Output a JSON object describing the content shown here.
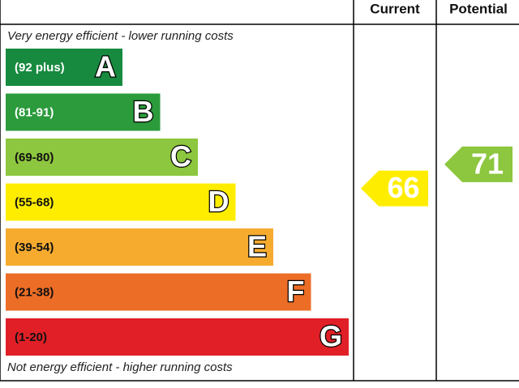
{
  "header": {
    "current": "Current",
    "potential": "Potential"
  },
  "top_note": "Very energy efficient - lower running costs",
  "bottom_note": "Not energy efficient - higher running costs",
  "bands": [
    {
      "range": "(92 plus)",
      "letter": "A",
      "color": "#178a3f",
      "text_color": "#ffffff"
    },
    {
      "range": "(81-91)",
      "letter": "B",
      "color": "#2b9b3b",
      "text_color": "#ffffff"
    },
    {
      "range": "(69-80)",
      "letter": "C",
      "color": "#8dc63f",
      "text_color": "#111111"
    },
    {
      "range": "(55-68)",
      "letter": "D",
      "color": "#ffed00",
      "text_color": "#111111"
    },
    {
      "range": "(39-54)",
      "letter": "E",
      "color": "#f6ab2f",
      "text_color": "#111111"
    },
    {
      "range": "(21-38)",
      "letter": "F",
      "color": "#ec6d26",
      "text_color": "#111111"
    },
    {
      "range": "(1-20)",
      "letter": "G",
      "color": "#e01f27",
      "text_color": "#111111"
    }
  ],
  "current": {
    "value": 66,
    "color": "#ffed00"
  },
  "potential": {
    "value": 71,
    "color": "#8dc63f"
  }
}
